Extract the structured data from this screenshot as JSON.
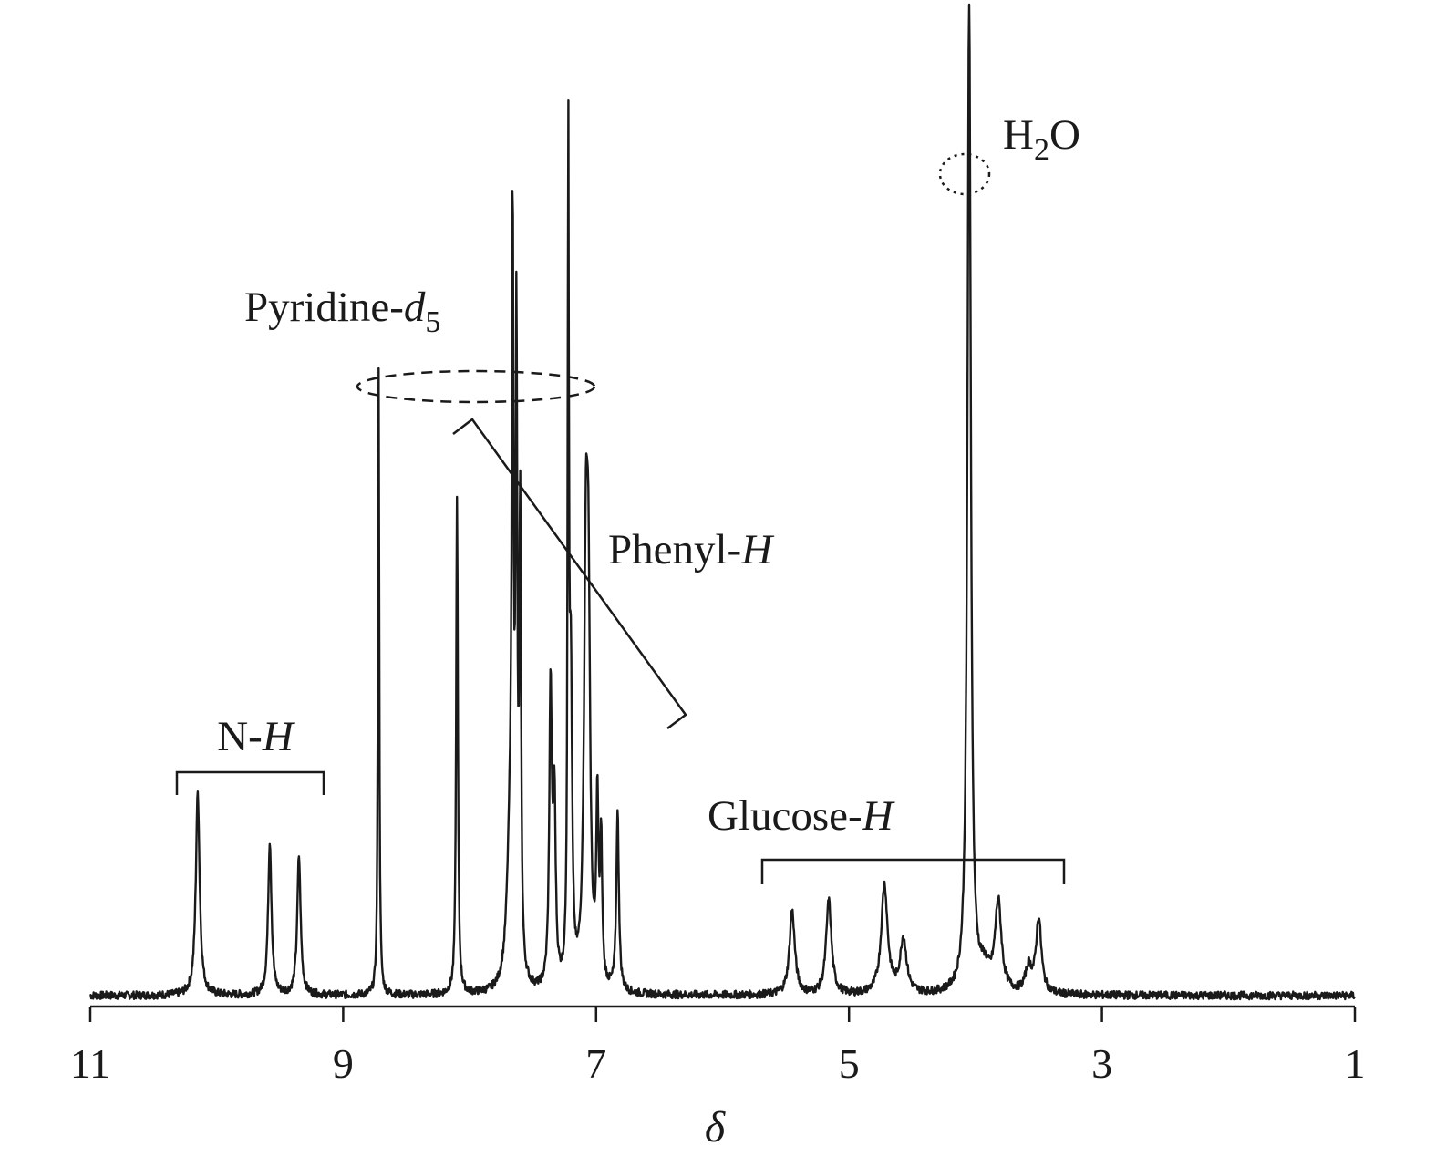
{
  "chart_data": {
    "type": "line",
    "title": "",
    "xlabel": "δ",
    "ylabel": "",
    "x_reversed": true,
    "xlim": [
      1,
      11
    ],
    "ylim": [
      0,
      1
    ],
    "xticks": [
      11,
      9,
      7,
      5,
      3,
      1
    ],
    "grid": false,
    "baseline_noise": 0.004,
    "peaks": [
      {
        "shift": 10.15,
        "height": 0.205,
        "width": 0.018
      },
      {
        "shift": 9.58,
        "height": 0.155,
        "width": 0.016
      },
      {
        "shift": 9.35,
        "height": 0.14,
        "width": 0.016
      },
      {
        "shift": 8.72,
        "height": 0.645,
        "width": 0.006
      },
      {
        "shift": 8.1,
        "height": 0.505,
        "width": 0.008
      },
      {
        "shift": 7.68,
        "height": 0.14,
        "width": 0.03
      },
      {
        "shift": 7.66,
        "height": 0.69,
        "width": 0.008
      },
      {
        "shift": 7.63,
        "height": 0.62,
        "width": 0.008
      },
      {
        "shift": 7.6,
        "height": 0.46,
        "width": 0.008
      },
      {
        "shift": 7.36,
        "height": 0.3,
        "width": 0.012
      },
      {
        "shift": 7.33,
        "height": 0.18,
        "width": 0.012
      },
      {
        "shift": 7.22,
        "height": 0.82,
        "width": 0.006
      },
      {
        "shift": 7.2,
        "height": 0.3,
        "width": 0.012
      },
      {
        "shift": 7.08,
        "height": 0.42,
        "width": 0.018
      },
      {
        "shift": 7.06,
        "height": 0.3,
        "width": 0.015
      },
      {
        "shift": 6.99,
        "height": 0.18,
        "width": 0.01
      },
      {
        "shift": 6.96,
        "height": 0.14,
        "width": 0.01
      },
      {
        "shift": 6.83,
        "height": 0.18,
        "width": 0.012
      },
      {
        "shift": 5.45,
        "height": 0.085,
        "width": 0.025
      },
      {
        "shift": 5.16,
        "height": 0.095,
        "width": 0.025
      },
      {
        "shift": 4.72,
        "height": 0.11,
        "width": 0.03
      },
      {
        "shift": 4.57,
        "height": 0.055,
        "width": 0.03
      },
      {
        "shift": 4.05,
        "height": 1.0,
        "width": 0.016
      },
      {
        "shift": 3.93,
        "height": 0.02,
        "width": 0.05
      },
      {
        "shift": 3.82,
        "height": 0.09,
        "width": 0.03
      },
      {
        "shift": 3.5,
        "height": 0.075,
        "width": 0.025
      },
      {
        "shift": 3.58,
        "height": 0.025,
        "width": 0.03
      }
    ],
    "annotations": [
      {
        "id": "nh",
        "text": "N-",
        "italic": "H",
        "range": [
          10.3,
          9.15
        ]
      },
      {
        "id": "pyridine",
        "text": "Pyridine-",
        "italic": "d",
        "sub": "5",
        "center": 8.0
      },
      {
        "id": "phenyl",
        "text": "Phenyl-",
        "italic": "H"
      },
      {
        "id": "glucose",
        "text": "Glucose-",
        "italic": "H",
        "range": [
          5.65,
          3.28
        ]
      },
      {
        "id": "water",
        "text": "H",
        "sub": "2",
        "after": "O",
        "center": 4.05
      }
    ]
  }
}
